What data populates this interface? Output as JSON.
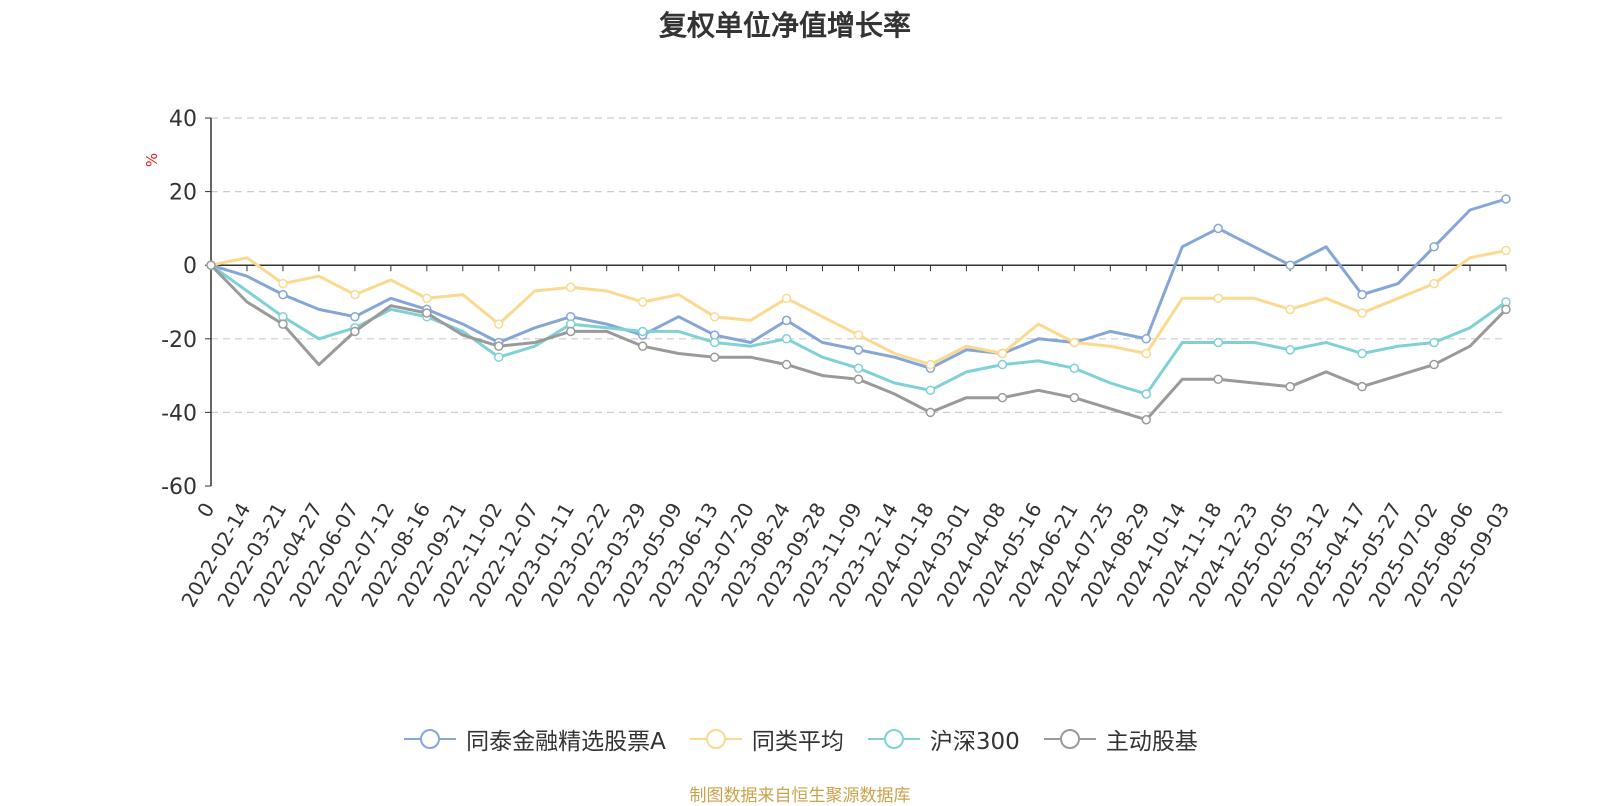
{
  "chart_data": {
    "type": "line",
    "title": "复权单位净值增长率",
    "ylabel": "%",
    "ylim": [
      -60,
      40
    ],
    "yticks": [
      -60,
      -40,
      -20,
      0,
      20,
      40
    ],
    "grid": true,
    "legend_position": "bottom",
    "x": [
      "0",
      "2022-02-14",
      "2022-03-21",
      "2022-04-27",
      "2022-06-07",
      "2022-07-12",
      "2022-08-16",
      "2022-09-21",
      "2022-11-02",
      "2022-12-07",
      "2023-01-11",
      "2023-02-22",
      "2023-03-29",
      "2023-05-09",
      "2023-06-13",
      "2023-07-20",
      "2023-08-24",
      "2023-09-28",
      "2023-11-09",
      "2023-12-14",
      "2024-01-18",
      "2024-03-01",
      "2024-04-08",
      "2024-05-16",
      "2024-06-21",
      "2024-07-25",
      "2024-08-29",
      "2024-10-14",
      "2024-11-18",
      "2024-12-23",
      "2025-02-05",
      "2025-03-12",
      "2025-04-17",
      "2025-05-27",
      "2025-07-02",
      "2025-08-06",
      "2025-09-03"
    ],
    "series": [
      {
        "name": "同泰金融精选股票A",
        "color": "#86a6d8",
        "values": [
          0,
          -3,
          -8,
          -12,
          -14,
          -9,
          -12,
          -16,
          -21,
          -17,
          -14,
          -16,
          -19,
          -14,
          -19,
          -21,
          -15,
          -21,
          -23,
          -25,
          -28,
          -23,
          -24,
          -20,
          -21,
          -18,
          -20,
          5,
          10,
          5,
          0,
          5,
          -8,
          -5,
          5,
          15,
          18
        ]
      },
      {
        "name": "同类平均",
        "color": "#fbd98f",
        "values": [
          0,
          2,
          -5,
          -3,
          -8,
          -4,
          -9,
          -8,
          -16,
          -7,
          -6,
          -7,
          -10,
          -8,
          -14,
          -15,
          -9,
          -14,
          -19,
          -24,
          -27,
          -22,
          -24,
          -16,
          -21,
          -22,
          -24,
          -9,
          -9,
          -9,
          -12,
          -9,
          -13,
          -9,
          -5,
          2,
          4
        ]
      },
      {
        "name": "沪深300",
        "color": "#7fd1d6",
        "values": [
          0,
          -7,
          -14,
          -20,
          -17,
          -12,
          -14,
          -18,
          -25,
          -22,
          -16,
          -17,
          -18,
          -18,
          -21,
          -22,
          -20,
          -25,
          -28,
          -32,
          -34,
          -29,
          -27,
          -26,
          -28,
          -32,
          -35,
          -21,
          -21,
          -21,
          -23,
          -21,
          -24,
          -22,
          -21,
          -17,
          -10
        ]
      },
      {
        "name": "主动股基",
        "color": "#9a9a9a",
        "values": [
          0,
          -10,
          -16,
          -27,
          -18,
          -11,
          -13,
          -19,
          -22,
          -21,
          -18,
          -18,
          -22,
          -24,
          -25,
          -25,
          -27,
          -30,
          -31,
          -35,
          -40,
          -36,
          -36,
          -34,
          -36,
          -39,
          -42,
          -31,
          -31,
          -32,
          -33,
          -29,
          -33,
          -30,
          -27,
          -22,
          -12
        ]
      }
    ]
  },
  "source_note": "制图数据来自恒生聚源数据库"
}
